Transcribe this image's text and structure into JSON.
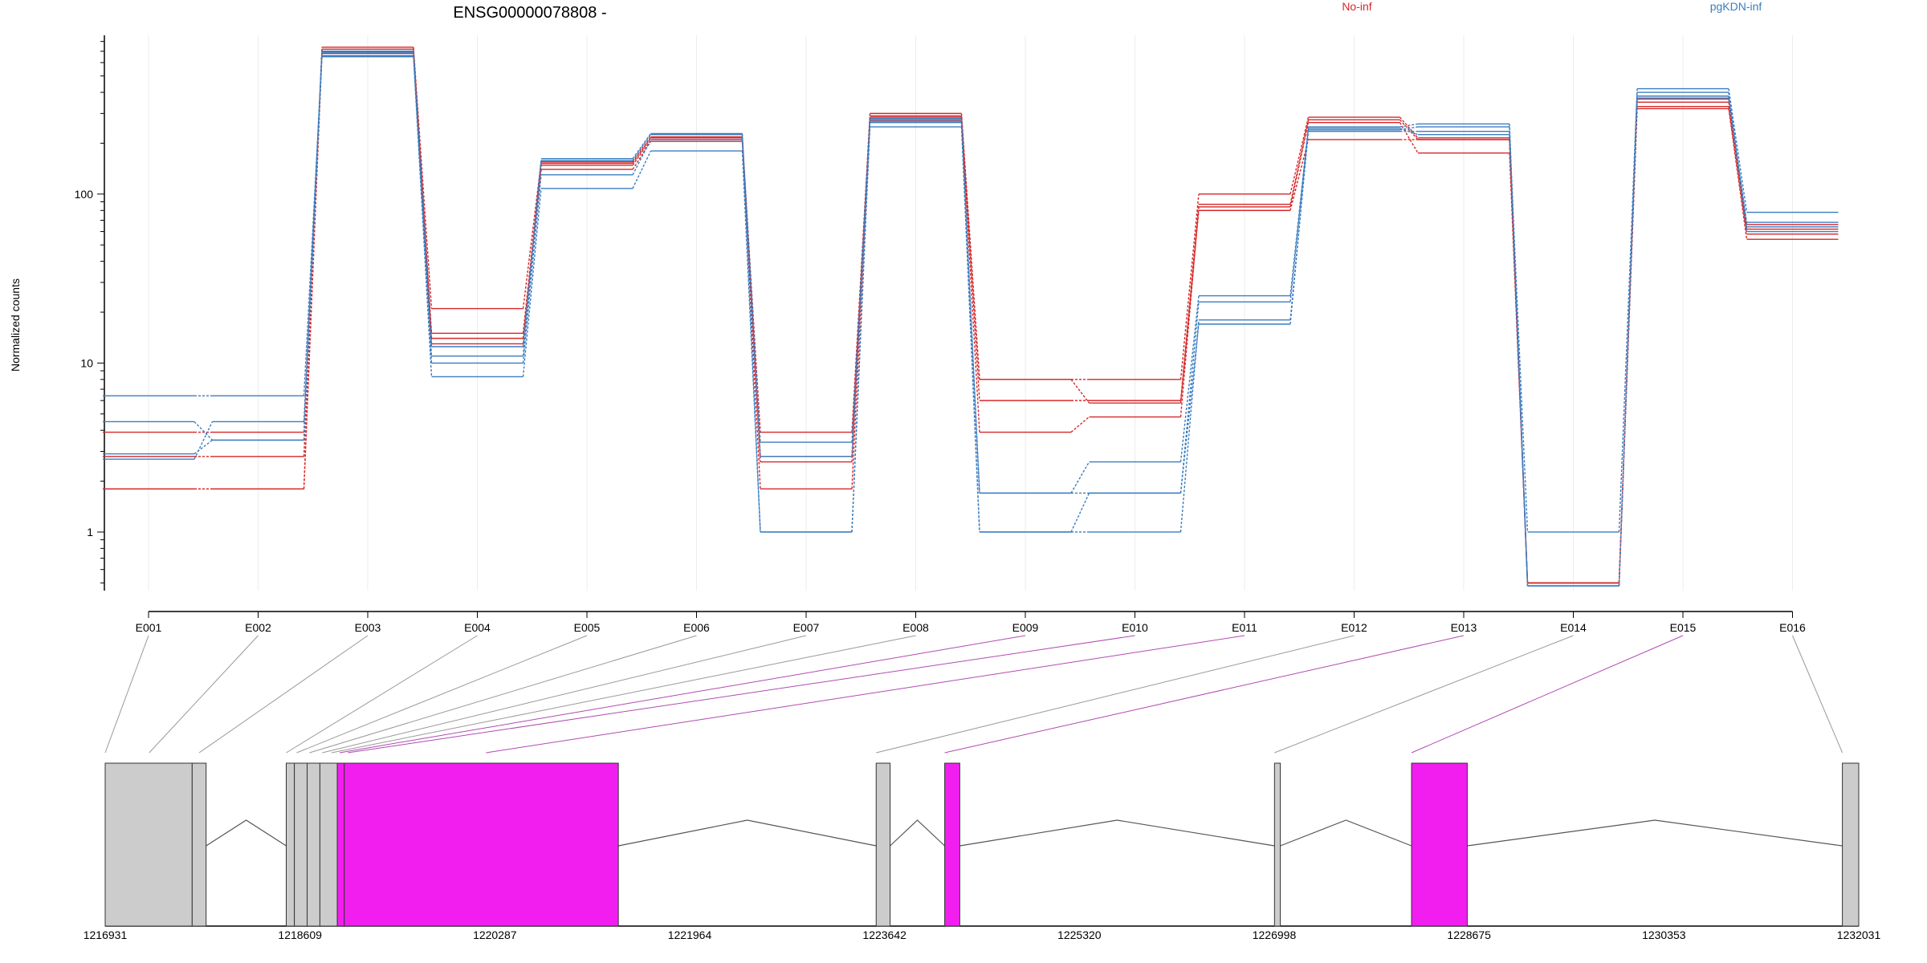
{
  "chart_data": {
    "type": "line",
    "title": "ENSG00000078808 -",
    "ylabel": "Normalized counts",
    "yscale": "log",
    "ylim": [
      0.45,
      870
    ],
    "yticks": [
      1,
      10,
      100
    ],
    "yticklabels": [
      "1",
      "10",
      "100"
    ],
    "categories": [
      "E001",
      "E002",
      "E003",
      "E004",
      "E005",
      "E006",
      "E007",
      "E008",
      "E009",
      "E010",
      "E011",
      "E012",
      "E013",
      "E014",
      "E015",
      "E016"
    ],
    "grid": true,
    "legend": [
      {
        "name": "No-inf",
        "color": "#d62728"
      },
      {
        "name": "pgKDN-inf",
        "color": "#3a7dc0"
      }
    ],
    "series": [
      {
        "group": "No-inf",
        "values": [
          1.8,
          1.8,
          740,
          21,
          155,
          218,
          2.8,
          300,
          8,
          8,
          100,
          285,
          215,
          0.5,
          365,
          62
        ]
      },
      {
        "group": "No-inf",
        "values": [
          2.8,
          2.8,
          720,
          15,
          152,
          215,
          3.9,
          290,
          6,
          6,
          87,
          275,
          210,
          0.5,
          350,
          66
        ]
      },
      {
        "group": "No-inf",
        "values": [
          3.9,
          3.9,
          700,
          14,
          148,
          210,
          2.6,
          285,
          3.9,
          4.8,
          84,
          265,
          175,
          0.5,
          330,
          58
        ]
      },
      {
        "group": "No-inf",
        "values": [
          1.8,
          1.8,
          680,
          13,
          140,
          205,
          1.8,
          270,
          8,
          5.8,
          80,
          210,
          210,
          0.5,
          320,
          54
        ]
      },
      {
        "group": "pgKDN-inf",
        "values": [
          6.4,
          6.4,
          650,
          8.3,
          108,
          180,
          1,
          250,
          1,
          1,
          18,
          235,
          235,
          1,
          420,
          78
        ]
      },
      {
        "group": "pgKDN-inf",
        "values": [
          4.5,
          3.5,
          660,
          10,
          130,
          210,
          2.8,
          265,
          1.7,
          1.7,
          17,
          240,
          250,
          0.48,
          400,
          60
        ]
      },
      {
        "group": "pgKDN-inf",
        "values": [
          2.9,
          3.5,
          690,
          11,
          158,
          225,
          3.4,
          275,
          1.7,
          2.6,
          25,
          250,
          260,
          0.48,
          380,
          64
        ]
      },
      {
        "group": "pgKDN-inf",
        "values": [
          2.7,
          4.5,
          700,
          12.5,
          162,
          228,
          1,
          280,
          1,
          1.7,
          23,
          245,
          225,
          0.48,
          370,
          68
        ]
      }
    ]
  },
  "gene_model": {
    "x_ticks": [
      "1216931",
      "1218609",
      "1220287",
      "1221964",
      "1223642",
      "1225320",
      "1226998",
      "1228675",
      "1230353",
      "1232031"
    ],
    "range": [
      1216931,
      1232031
    ],
    "highlight_color": "#f21ef0",
    "exon_color": "#cccccc",
    "exons": [
      {
        "id": "E001",
        "start": 1216931,
        "end": 1217680,
        "significant": false
      },
      {
        "id": "E002",
        "start": 1217680,
        "end": 1217800,
        "significant": false
      },
      {
        "id": "E003",
        "start": 1218490,
        "end": 1218560,
        "significant": false
      },
      {
        "id": "E004",
        "start": 1218560,
        "end": 1218670,
        "significant": false
      },
      {
        "id": "E005",
        "start": 1218670,
        "end": 1218780,
        "significant": false
      },
      {
        "id": "E006",
        "start": 1218780,
        "end": 1218930,
        "significant": false
      },
      {
        "id": "E007",
        "start": 1218930,
        "end": 1218990,
        "significant": true
      },
      {
        "id": "E008",
        "start": 1218990,
        "end": 1221350,
        "significant": true
      },
      {
        "id": "E009",
        "start": 1223570,
        "end": 1223690,
        "significant": false
      },
      {
        "id": "E010",
        "start": 1224160,
        "end": 1224290,
        "significant": true
      },
      {
        "id": "E011",
        "start": 1227000,
        "end": 1227050,
        "significant": false
      },
      {
        "id": "E012",
        "start": 1228180,
        "end": 1228660,
        "significant": true
      },
      {
        "id": "E013",
        "start": 1231890,
        "end": 1232031,
        "significant": false
      }
    ],
    "introns": [
      [
        1217800,
        1218490
      ],
      [
        1221350,
        1223570
      ],
      [
        1223690,
        1224160
      ],
      [
        1224290,
        1227000
      ],
      [
        1227050,
        1228180
      ],
      [
        1228660,
        1231890
      ]
    ],
    "connectors": [
      {
        "bin": "E001",
        "pos": 1216931,
        "significant": false
      },
      {
        "bin": "E002",
        "pos": 1217310,
        "significant": false
      },
      {
        "bin": "E003",
        "pos": 1217740,
        "significant": false
      },
      {
        "bin": "E004",
        "pos": 1218490,
        "significant": false
      },
      {
        "bin": "E005",
        "pos": 1218580,
        "significant": false
      },
      {
        "bin": "E006",
        "pos": 1218690,
        "significant": false
      },
      {
        "bin": "E007",
        "pos": 1218800,
        "significant": false
      },
      {
        "bin": "E008",
        "pos": 1218880,
        "significant": false
      },
      {
        "bin": "E009",
        "pos": 1218950,
        "significant": true
      },
      {
        "bin": "E010",
        "pos": 1219020,
        "significant": true
      },
      {
        "bin": "E011",
        "pos": 1220210,
        "significant": true
      },
      {
        "bin": "E012",
        "pos": 1223570,
        "significant": false
      },
      {
        "bin": "E013",
        "pos": 1224160,
        "significant": true
      },
      {
        "bin": "E014",
        "pos": 1227000,
        "significant": false
      },
      {
        "bin": "E015",
        "pos": 1228180,
        "significant": true
      },
      {
        "bin": "E016",
        "pos": 1231890,
        "significant": false
      }
    ]
  }
}
